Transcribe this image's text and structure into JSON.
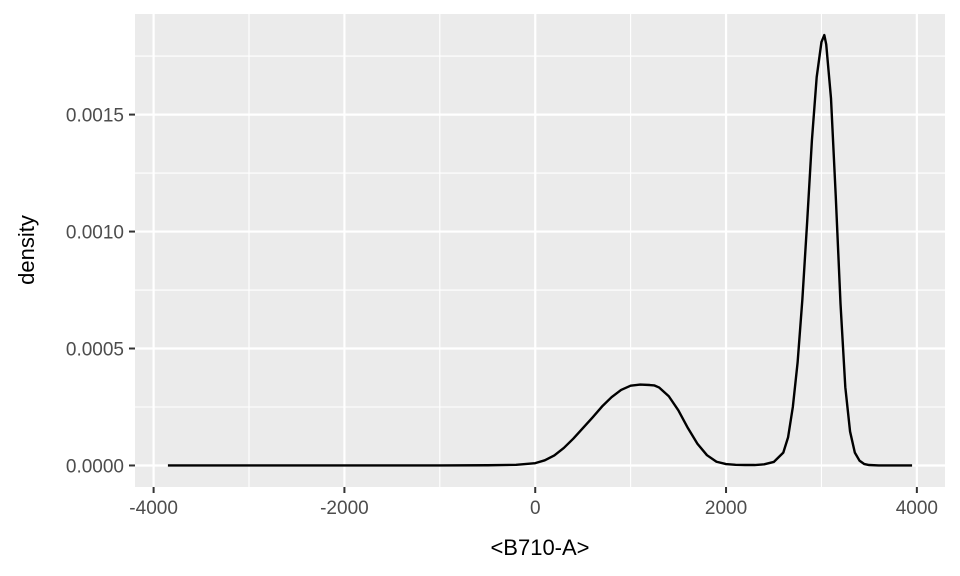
{
  "chart_data": {
    "type": "line",
    "title": "",
    "xlabel": "<B710-A>",
    "ylabel": "density",
    "xlim": [
      -4000,
      4000
    ],
    "ylim": [
      0,
      0.00185
    ],
    "x_ticks": [
      -4000,
      -2000,
      0,
      2000,
      4000
    ],
    "x_tick_labels": [
      "-4000",
      "-2000",
      "0",
      "2000",
      "4000"
    ],
    "y_ticks": [
      0,
      0.0005,
      0.001,
      0.0015
    ],
    "y_tick_labels": [
      "0.0000",
      "0.0005",
      "0.0010",
      "0.0015"
    ],
    "grid": true,
    "legend": "none",
    "colors": {
      "panel": "#ebebeb",
      "grid": "#ffffff",
      "line": "#000000",
      "tick_text": "#4d4d4d"
    },
    "series": [
      {
        "x": [
          -3850,
          -3500,
          -3000,
          -2500,
          -2000,
          -1500,
          -1000,
          -500,
          -200,
          0,
          100,
          200,
          300,
          400,
          500,
          600,
          700,
          800,
          900,
          1000,
          1100,
          1200,
          1250,
          1300,
          1400,
          1500,
          1600,
          1700,
          1800,
          1900,
          2000,
          2100,
          2200,
          2300,
          2400,
          2500,
          2600,
          2650,
          2700,
          2750,
          2800,
          2850,
          2900,
          2950,
          3000,
          3030,
          3050,
          3100,
          3150,
          3200,
          3250,
          3300,
          3350,
          3400,
          3450,
          3500,
          3600,
          3700,
          3800,
          3950
        ],
        "y": [
          0,
          0,
          0,
          0,
          0,
          0,
          0,
          1e-06,
          3e-06,
          1e-05,
          2.2e-05,
          4.3e-05,
          7.5e-05,
          0.000115,
          0.00016,
          0.000205,
          0.000252,
          0.000292,
          0.000323,
          0.000341,
          0.000346,
          0.000344,
          0.000342,
          0.000333,
          0.000296,
          0.000236,
          0.00016,
          9.3e-05,
          4.4e-05,
          1.6e-05,
          6e-06,
          3e-06,
          2e-06,
          2e-06,
          5e-06,
          1.5e-05,
          5.5e-05,
          0.00012,
          0.00025,
          0.00044,
          0.00071,
          0.00104,
          0.00139,
          0.00166,
          0.00181,
          0.00184,
          0.0018,
          0.00157,
          0.00115,
          0.00069,
          0.000335,
          0.000145,
          5.5e-05,
          2e-05,
          6e-06,
          2e-06,
          0,
          0,
          0,
          0
        ]
      }
    ]
  }
}
